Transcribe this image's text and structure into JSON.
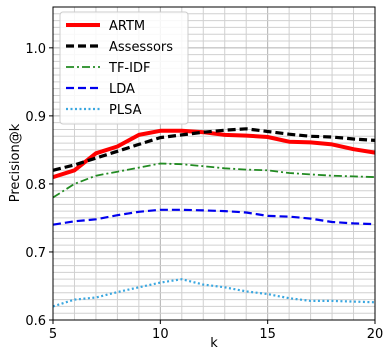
{
  "chart_data": {
    "type": "line",
    "xlabel": "k",
    "ylabel": "Precision@k",
    "xlim": [
      5,
      20
    ],
    "ylim": [
      0.6,
      1.06
    ],
    "grid": true,
    "xticks": [
      5,
      10,
      15,
      20
    ],
    "xtick_labels": [
      "5",
      "10",
      "15",
      "20"
    ],
    "yticks": [
      0.6,
      0.7,
      0.8,
      0.9,
      1.0
    ],
    "ytick_labels": [
      "0.6",
      "0.7",
      "0.8",
      "0.9",
      "1.0"
    ],
    "legend_position": "top-left",
    "x": [
      5,
      6,
      7,
      8,
      9,
      10,
      11,
      12,
      13,
      14,
      15,
      16,
      17,
      18,
      19,
      20
    ],
    "series": [
      {
        "name": "ARTM",
        "color": "#ff0000",
        "style": "solid",
        "values": [
          0.81,
          0.82,
          0.845,
          0.855,
          0.872,
          0.878,
          0.878,
          0.876,
          0.872,
          0.871,
          0.869,
          0.862,
          0.861,
          0.858,
          0.851,
          0.846
        ]
      },
      {
        "name": "Assessors",
        "color": "#000000",
        "style": "dashed",
        "values": [
          0.82,
          0.828,
          0.838,
          0.848,
          0.858,
          0.868,
          0.872,
          0.876,
          0.879,
          0.881,
          0.877,
          0.873,
          0.87,
          0.869,
          0.866,
          0.864
        ]
      },
      {
        "name": "TF-IDF",
        "color": "#228b22",
        "style": "dashdot",
        "values": [
          0.78,
          0.8,
          0.812,
          0.818,
          0.824,
          0.83,
          0.829,
          0.826,
          0.823,
          0.821,
          0.82,
          0.816,
          0.814,
          0.812,
          0.811,
          0.81
        ]
      },
      {
        "name": "LDA",
        "color": "#0000ee",
        "style": "dashed",
        "values": [
          0.74,
          0.745,
          0.748,
          0.754,
          0.759,
          0.762,
          0.762,
          0.761,
          0.76,
          0.758,
          0.753,
          0.752,
          0.749,
          0.744,
          0.742,
          0.741
        ]
      },
      {
        "name": "PLSA",
        "color": "#3aa7e0",
        "style": "dotted",
        "values": [
          0.62,
          0.63,
          0.633,
          0.641,
          0.648,
          0.655,
          0.66,
          0.652,
          0.648,
          0.642,
          0.638,
          0.632,
          0.628,
          0.628,
          0.627,
          0.626
        ]
      }
    ]
  }
}
